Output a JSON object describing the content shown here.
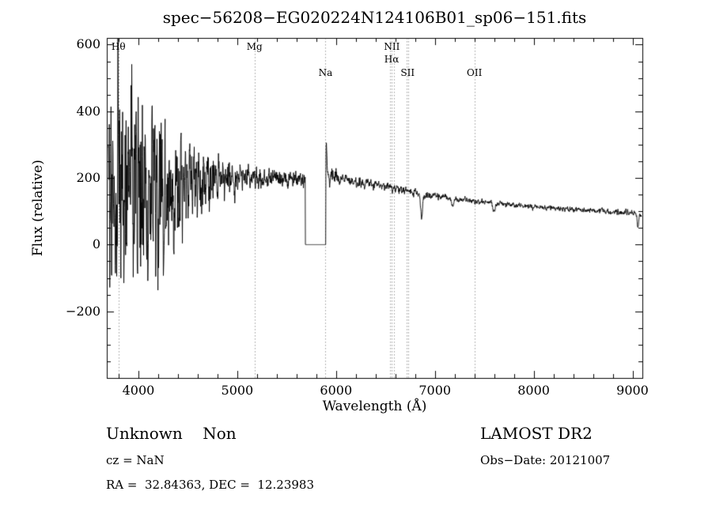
{
  "chart_data": {
    "type": "line",
    "title": "spec−56208−EG020224N124106B01_sp06−151.fits",
    "xlabel": "Wavelength (Å)",
    "ylabel": "Flux (relative)",
    "xlim": [
      3680,
      9100
    ],
    "ylim": [
      -400,
      620
    ],
    "xticks": [
      4000,
      5000,
      6000,
      7000,
      8000,
      9000
    ],
    "yticks": [
      -200,
      0,
      200,
      400,
      600
    ],
    "x_minor_step": 200,
    "y_minor_step": 50,
    "grid": false,
    "line_color": "#000000",
    "marker_line_color": "#9a9a9a",
    "spectral_lines": [
      {
        "label": "Hθ",
        "wavelengths": [
          3798
        ],
        "row": 0
      },
      {
        "label": "Mg",
        "wavelengths": [
          5175
        ],
        "row": 0
      },
      {
        "label": "Na",
        "wavelengths": [
          5893
        ],
        "row": 2
      },
      {
        "label": "NII",
        "wavelengths": [
          6548,
          6583
        ],
        "row": 0
      },
      {
        "label": "Hα",
        "wavelengths": [
          6563
        ],
        "row": 1
      },
      {
        "label": "SII",
        "wavelengths": [
          6717,
          6731
        ],
        "row": 2
      },
      {
        "label": "OII",
        "wavelengths": [
          7400
        ],
        "row": 2
      }
    ],
    "continuum": [
      [
        3695,
        140
      ],
      [
        3900,
        150
      ],
      [
        4200,
        170
      ],
      [
        4600,
        188
      ],
      [
        5000,
        196
      ],
      [
        5300,
        200
      ],
      [
        5680,
        196
      ],
      [
        5900,
        208
      ],
      [
        6100,
        196
      ],
      [
        6500,
        176
      ],
      [
        6900,
        150
      ],
      [
        7300,
        134
      ],
      [
        7700,
        122
      ],
      [
        8100,
        112
      ],
      [
        8500,
        104
      ],
      [
        9000,
        94
      ],
      [
        9090,
        88
      ]
    ],
    "noise_envelope": [
      [
        3695,
        470
      ],
      [
        3800,
        440
      ],
      [
        3900,
        420
      ],
      [
        4000,
        370
      ],
      [
        4100,
        320
      ],
      [
        4200,
        270
      ],
      [
        4300,
        225
      ],
      [
        4400,
        175
      ],
      [
        4500,
        135
      ],
      [
        4700,
        105
      ],
      [
        4900,
        68
      ],
      [
        5100,
        45
      ],
      [
        5300,
        34
      ],
      [
        5680,
        26
      ],
      [
        5900,
        30
      ],
      [
        6100,
        20
      ],
      [
        6400,
        15
      ],
      [
        6800,
        13
      ],
      [
        7200,
        11
      ],
      [
        7800,
        9
      ],
      [
        8400,
        9
      ],
      [
        9090,
        11
      ]
    ],
    "gap": {
      "start": 5690,
      "end": 5896,
      "flux": 0
    },
    "emission_spikes": [
      {
        "x": 5903,
        "height": 100,
        "width": 4
      }
    ],
    "absorption_dips": [
      {
        "x": 6865,
        "depth": 70,
        "width": 9
      },
      {
        "x": 7180,
        "depth": 22,
        "width": 10
      },
      {
        "x": 7600,
        "depth": 24,
        "width": 12
      },
      {
        "x": 9055,
        "depth": 40,
        "width": 8
      }
    ],
    "seed": 20121007,
    "sample_step": 2.5,
    "x_start": 3695,
    "x_end": 9090
  },
  "footer": {
    "class_label": "Unknown    Non",
    "cz": "cz = NaN",
    "radec": "RA =  32.84363, DEC =  12.23983",
    "survey": "LAMOST DR2",
    "obs_date": "Obs−Date: 20121007"
  }
}
